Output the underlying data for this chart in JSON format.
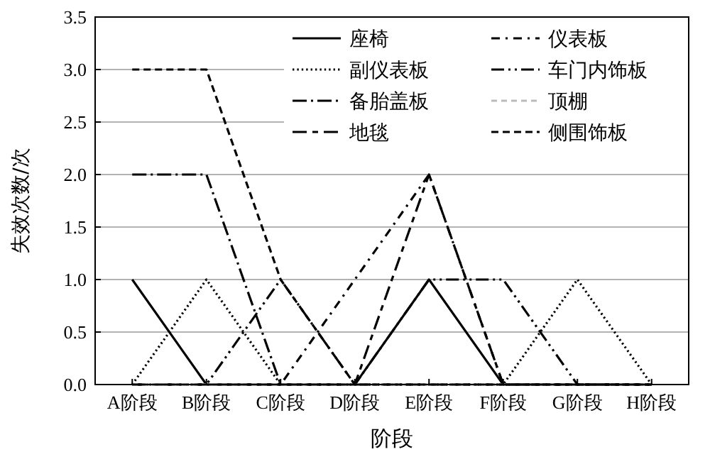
{
  "chart_data": {
    "type": "line",
    "xlabel": "阶段",
    "ylabel": "失效次数/次",
    "categories": [
      "A阶段",
      "B阶段",
      "C阶段",
      "D阶段",
      "E阶段",
      "F阶段",
      "G阶段",
      "H阶段"
    ],
    "ylim": [
      0,
      3.5
    ],
    "yticks": [
      {
        "value": 0,
        "label": "0.0"
      },
      {
        "value": 0.5,
        "label": "0.5"
      },
      {
        "value": 1,
        "label": "1.0"
      },
      {
        "value": 1.5,
        "label": "1.5"
      },
      {
        "value": 2,
        "label": "2.0"
      },
      {
        "value": 2.5,
        "label": "2.5"
      },
      {
        "value": 3,
        "label": "3.0"
      },
      {
        "value": 3.5,
        "label": "3.5"
      }
    ],
    "grid": "y",
    "legend": "top right",
    "marker": "none",
    "series": [
      {
        "name": "座椅",
        "color": "#000000",
        "line_style": "solid",
        "values": [
          1,
          0,
          0,
          0,
          1,
          0,
          0,
          0
        ]
      },
      {
        "name": "副仪表板",
        "color": "#000000",
        "line_style": "dotted",
        "values": [
          0,
          1,
          0,
          0,
          0,
          0,
          1,
          0
        ]
      },
      {
        "name": "备胎盖板",
        "color": "#000000",
        "line_style": "dashed",
        "values": [
          2,
          2,
          0,
          0,
          0,
          0,
          0,
          0
        ]
      },
      {
        "name": "地毯",
        "color": "#000000",
        "line_style": "dashed",
        "values": [
          0,
          0,
          0,
          0,
          2,
          0,
          0,
          0
        ]
      },
      {
        "name": "仪表板",
        "color": "#000000",
        "line_style": "dashed",
        "values": [
          0,
          0,
          0,
          1,
          2,
          0,
          0,
          0
        ]
      },
      {
        "name": "车门内饰板",
        "color": "#000000",
        "line_style": "dashed",
        "values": [
          0,
          0,
          1,
          0,
          1,
          1,
          0,
          0
        ]
      },
      {
        "name": "顶棚",
        "color": "#bbbbbb",
        "line_style": "dashed",
        "values": [
          0,
          0,
          0,
          0,
          0,
          0,
          0,
          0
        ]
      },
      {
        "name": "侧围饰板",
        "color": "#000000",
        "line_style": "dashed",
        "values": [
          3,
          3,
          1,
          0,
          0,
          0,
          0,
          0
        ]
      }
    ]
  }
}
